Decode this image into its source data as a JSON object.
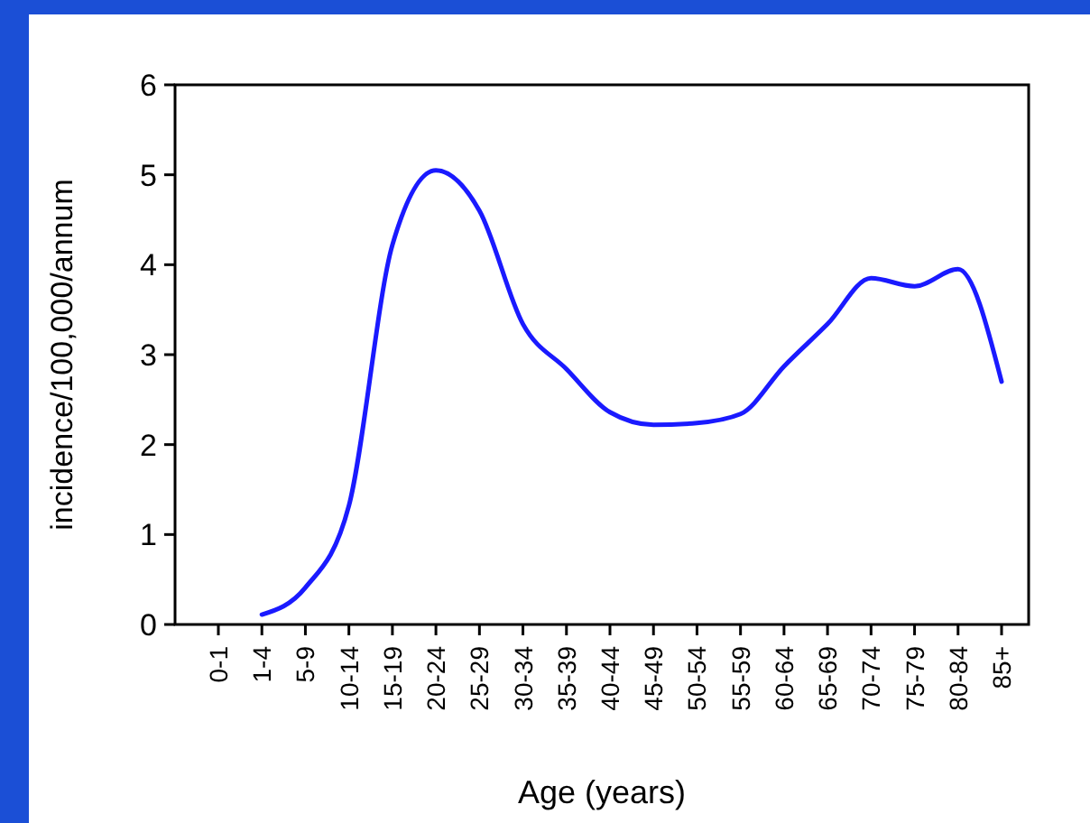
{
  "chart_data": {
    "type": "line",
    "xlabel": "Age (years)",
    "ylabel": "incidence/100,000/annum",
    "categories": [
      "0-1",
      "1-4",
      "5-9",
      "10-14",
      "15-19",
      "20-24",
      "25-29",
      "30-34",
      "35-39",
      "40-44",
      "45-49",
      "50-54",
      "55-59",
      "60-64",
      "65-69",
      "70-74",
      "75-79",
      "80-84",
      "85+"
    ],
    "series": [
      {
        "color": "#1a1aff",
        "values": [
          null,
          0.11,
          0.41,
          1.32,
          4.22,
          5.05,
          4.6,
          3.34,
          2.84,
          2.36,
          2.22,
          2.24,
          2.34,
          2.87,
          3.34,
          3.85,
          3.76,
          3.95,
          2.7
        ]
      }
    ],
    "ylim": [
      0,
      6
    ],
    "yticks": [
      0,
      1,
      2,
      3,
      4,
      5,
      6
    ],
    "grid": false,
    "marker": "none",
    "line_style": "solid"
  }
}
